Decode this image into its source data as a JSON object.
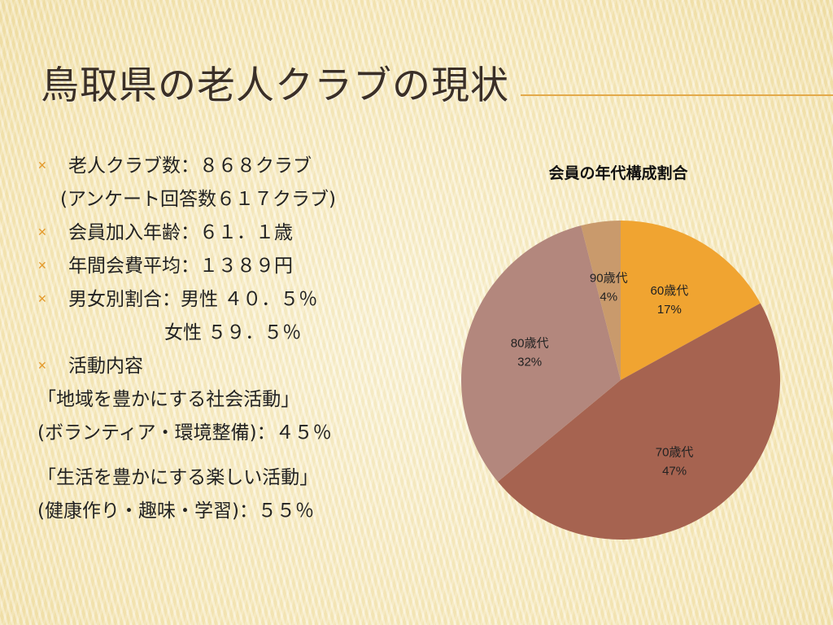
{
  "slide": {
    "title": "鳥取県の老人クラブの現状",
    "items": [
      {
        "type": "bullet",
        "text": "老人クラブ数：８６８クラブ"
      },
      {
        "type": "sub",
        "text": "(アンケート回答数６１７クラブ)"
      },
      {
        "type": "bullet",
        "text": "会員加入年齢：６１．１歳"
      },
      {
        "type": "bullet",
        "text": "年間会費平均：１３８９円"
      },
      {
        "type": "bullet",
        "text": "男女別割合：男性 ４０．５％"
      },
      {
        "type": "indent",
        "text": "女性 ５９．５％"
      },
      {
        "type": "bullet",
        "text": "活動内容"
      },
      {
        "type": "flush",
        "text": "「地域を豊かにする社会活動」"
      },
      {
        "type": "flush",
        "text": "(ボランティア・環境整備)：４５％"
      },
      {
        "type": "flush",
        "text": "「生活を豊かにする楽しい活動」"
      },
      {
        "type": "flush",
        "text": "(健康作り・趣味・学習)：５５％"
      }
    ]
  },
  "chart_data": {
    "type": "pie",
    "title": "会員の年代構成割合",
    "categories": [
      "60歳代",
      "70歳代",
      "80歳代",
      "90歳代"
    ],
    "values": [
      17,
      47,
      32,
      4
    ],
    "labels": [
      "17%",
      "47%",
      "32%",
      "4%"
    ],
    "colors": [
      "#f0a431",
      "#a66350",
      "#b3877d",
      "#c99a6c"
    ]
  }
}
